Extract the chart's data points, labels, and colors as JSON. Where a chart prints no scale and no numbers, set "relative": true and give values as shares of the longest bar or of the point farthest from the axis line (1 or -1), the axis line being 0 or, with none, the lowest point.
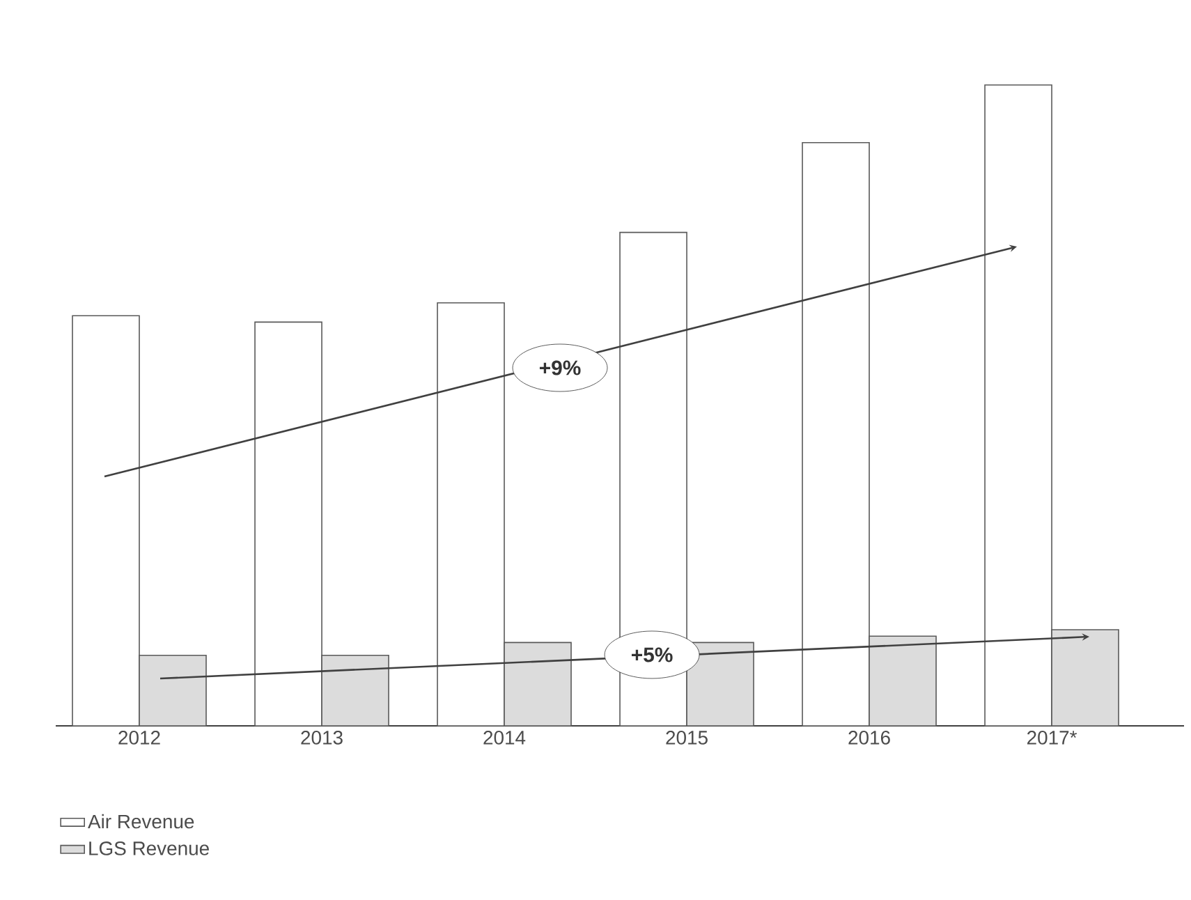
{
  "chart_data": {
    "type": "bar",
    "relative": true,
    "categories": [
      "2012",
      "2013",
      "2014",
      "2015",
      "2016",
      "2017*"
    ],
    "series": [
      {
        "name": "Air Revenue",
        "color": "#ffffff",
        "values": [
          0.64,
          0.63,
          0.66,
          0.77,
          0.91,
          1.0
        ]
      },
      {
        "name": "LGS Revenue",
        "color": "#dcdcdc",
        "values": [
          0.11,
          0.11,
          0.13,
          0.13,
          0.14,
          0.15
        ]
      }
    ],
    "annotations": [
      "+9%",
      "+5%"
    ],
    "legend": "bottom left"
  }
}
